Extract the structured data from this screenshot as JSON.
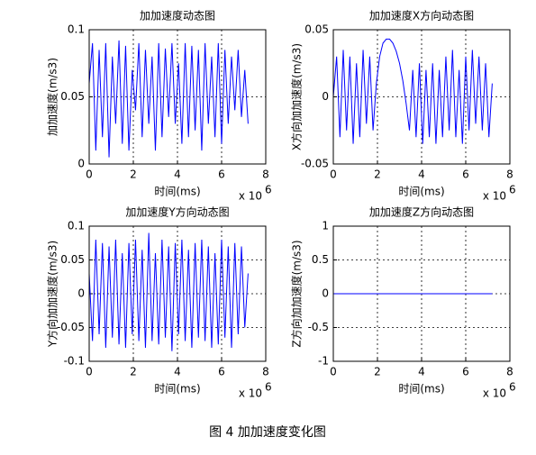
{
  "chart_data": [
    {
      "type": "line",
      "title": "加加速度动态图",
      "xlabel": "时间(ms)",
      "ylabel": "加加速度(m/s3)",
      "x_scale_label": "x 10",
      "x_scale_power": "6",
      "xlim": [
        0,
        8
      ],
      "xticks": [
        0,
        2,
        4,
        6,
        8
      ],
      "ylim": [
        0,
        0.1
      ],
      "yticks": [
        0,
        0.05,
        0.1
      ],
      "grid": true,
      "color": "#0000ff",
      "x": [
        0,
        0.15,
        0.3,
        0.45,
        0.6,
        0.75,
        0.9,
        1.05,
        1.2,
        1.35,
        1.5,
        1.65,
        1.8,
        1.95,
        2.1,
        2.25,
        2.4,
        2.55,
        2.7,
        2.85,
        3,
        3.15,
        3.3,
        3.45,
        3.6,
        3.75,
        3.9,
        4.05,
        4.2,
        4.35,
        4.5,
        4.65,
        4.8,
        4.95,
        5.1,
        5.25,
        5.4,
        5.55,
        5.7,
        5.85,
        6,
        6.15,
        6.3,
        6.45,
        6.6,
        6.75,
        6.9,
        7.05,
        7.2
      ],
      "values": [
        0.06,
        0.09,
        0.01,
        0.085,
        0.02,
        0.09,
        0.005,
        0.08,
        0.03,
        0.092,
        0.015,
        0.088,
        0.01,
        0.07,
        0.04,
        0.09,
        0.02,
        0.085,
        0.03,
        0.08,
        0.01,
        0.09,
        0.02,
        0.086,
        0.035,
        0.09,
        0.03,
        0.075,
        0.015,
        0.09,
        0.02,
        0.088,
        0.025,
        0.085,
        0.01,
        0.09,
        0.03,
        0.08,
        0.02,
        0.09,
        0.015,
        0.085,
        0.03,
        0.08,
        0.04,
        0.085,
        0.035,
        0.07,
        0.03
      ]
    },
    {
      "type": "line",
      "title": "加加速度X方向动态图",
      "xlabel": "时间(ms)",
      "ylabel": "X方向加加速度(m/s3)",
      "x_scale_label": "x 10",
      "x_scale_power": "6",
      "xlim": [
        0,
        8
      ],
      "xticks": [
        0,
        2,
        4,
        6,
        8
      ],
      "ylim": [
        -0.05,
        0.05
      ],
      "yticks": [
        -0.05,
        0,
        0.05
      ],
      "grid": true,
      "color": "#0000ff",
      "x": [
        0,
        0.15,
        0.3,
        0.45,
        0.6,
        0.75,
        0.9,
        1.05,
        1.2,
        1.35,
        1.5,
        1.65,
        1.8,
        1.95,
        2.1,
        2.25,
        2.4,
        2.55,
        2.7,
        2.85,
        3,
        3.15,
        3.3,
        3.45,
        3.6,
        3.75,
        3.9,
        4.05,
        4.2,
        4.35,
        4.5,
        4.65,
        4.8,
        4.95,
        5.1,
        5.25,
        5.4,
        5.55,
        5.7,
        5.85,
        6,
        6.15,
        6.3,
        6.45,
        6.6,
        6.75,
        6.9,
        7.05,
        7.2
      ],
      "values": [
        0,
        0.03,
        -0.03,
        0.035,
        -0.025,
        0.03,
        -0.035,
        0.025,
        -0.03,
        0.035,
        -0.02,
        0.03,
        -0.025,
        0.01,
        0.03,
        0.04,
        0.043,
        0.043,
        0.04,
        0.034,
        0.025,
        0.012,
        -0.005,
        -0.025,
        0.02,
        -0.03,
        0.025,
        -0.035,
        0.02,
        -0.03,
        0.025,
        -0.035,
        0.02,
        -0.03,
        0.03,
        -0.025,
        0.035,
        -0.03,
        0.02,
        -0.035,
        0.03,
        -0.025,
        0.035,
        -0.02,
        0.03,
        -0.025,
        0.025,
        -0.03,
        0.01
      ]
    },
    {
      "type": "line",
      "title": "加加速度Y方向动态图",
      "xlabel": "时间(ms)",
      "ylabel": "Y方向加加速度(m/s3)",
      "x_scale_label": "x 10",
      "x_scale_power": "6",
      "xlim": [
        0,
        8
      ],
      "xticks": [
        0,
        2,
        4,
        6,
        8
      ],
      "ylim": [
        -0.1,
        0.1
      ],
      "yticks": [
        -0.1,
        -0.05,
        0,
        0.05,
        0.1
      ],
      "grid": true,
      "color": "#0000ff",
      "x": [
        0,
        0.15,
        0.3,
        0.45,
        0.6,
        0.75,
        0.9,
        1.05,
        1.2,
        1.35,
        1.5,
        1.65,
        1.8,
        1.95,
        2.1,
        2.25,
        2.4,
        2.55,
        2.7,
        2.85,
        3,
        3.15,
        3.3,
        3.45,
        3.6,
        3.75,
        3.9,
        4.05,
        4.2,
        4.35,
        4.5,
        4.65,
        4.8,
        4.95,
        5.1,
        5.25,
        5.4,
        5.55,
        5.7,
        5.85,
        6,
        6.15,
        6.3,
        6.45,
        6.6,
        6.75,
        6.9,
        7.05,
        7.2
      ],
      "values": [
        0.03,
        -0.07,
        0.08,
        -0.06,
        0.075,
        -0.08,
        0.07,
        -0.065,
        0.08,
        -0.075,
        0.06,
        -0.08,
        0.075,
        -0.06,
        0.08,
        -0.07,
        0.065,
        -0.08,
        0.09,
        -0.07,
        0.06,
        -0.075,
        0.08,
        -0.065,
        0.07,
        -0.085,
        0.075,
        -0.06,
        0.08,
        -0.07,
        0.065,
        -0.08,
        0.075,
        -0.065,
        0.08,
        -0.07,
        0.07,
        -0.08,
        0.06,
        -0.075,
        0.08,
        -0.065,
        0.07,
        -0.08,
        0.075,
        -0.06,
        0.07,
        -0.05,
        0.03
      ]
    },
    {
      "type": "line",
      "title": "加加速度Z方向动态图",
      "xlabel": "时间(ms)",
      "ylabel": "Z方向加加速度(m/s3)",
      "x_scale_label": "x 10",
      "x_scale_power": "6",
      "xlim": [
        0,
        8
      ],
      "xticks": [
        0,
        2,
        4,
        6,
        8
      ],
      "ylim": [
        -1,
        1
      ],
      "yticks": [
        -1,
        -0.5,
        0,
        0.5,
        1
      ],
      "grid": true,
      "color": "#0000ff",
      "x": [
        0,
        7.2
      ],
      "values": [
        0,
        0
      ]
    }
  ],
  "caption": "图 4  加加速度变化图"
}
